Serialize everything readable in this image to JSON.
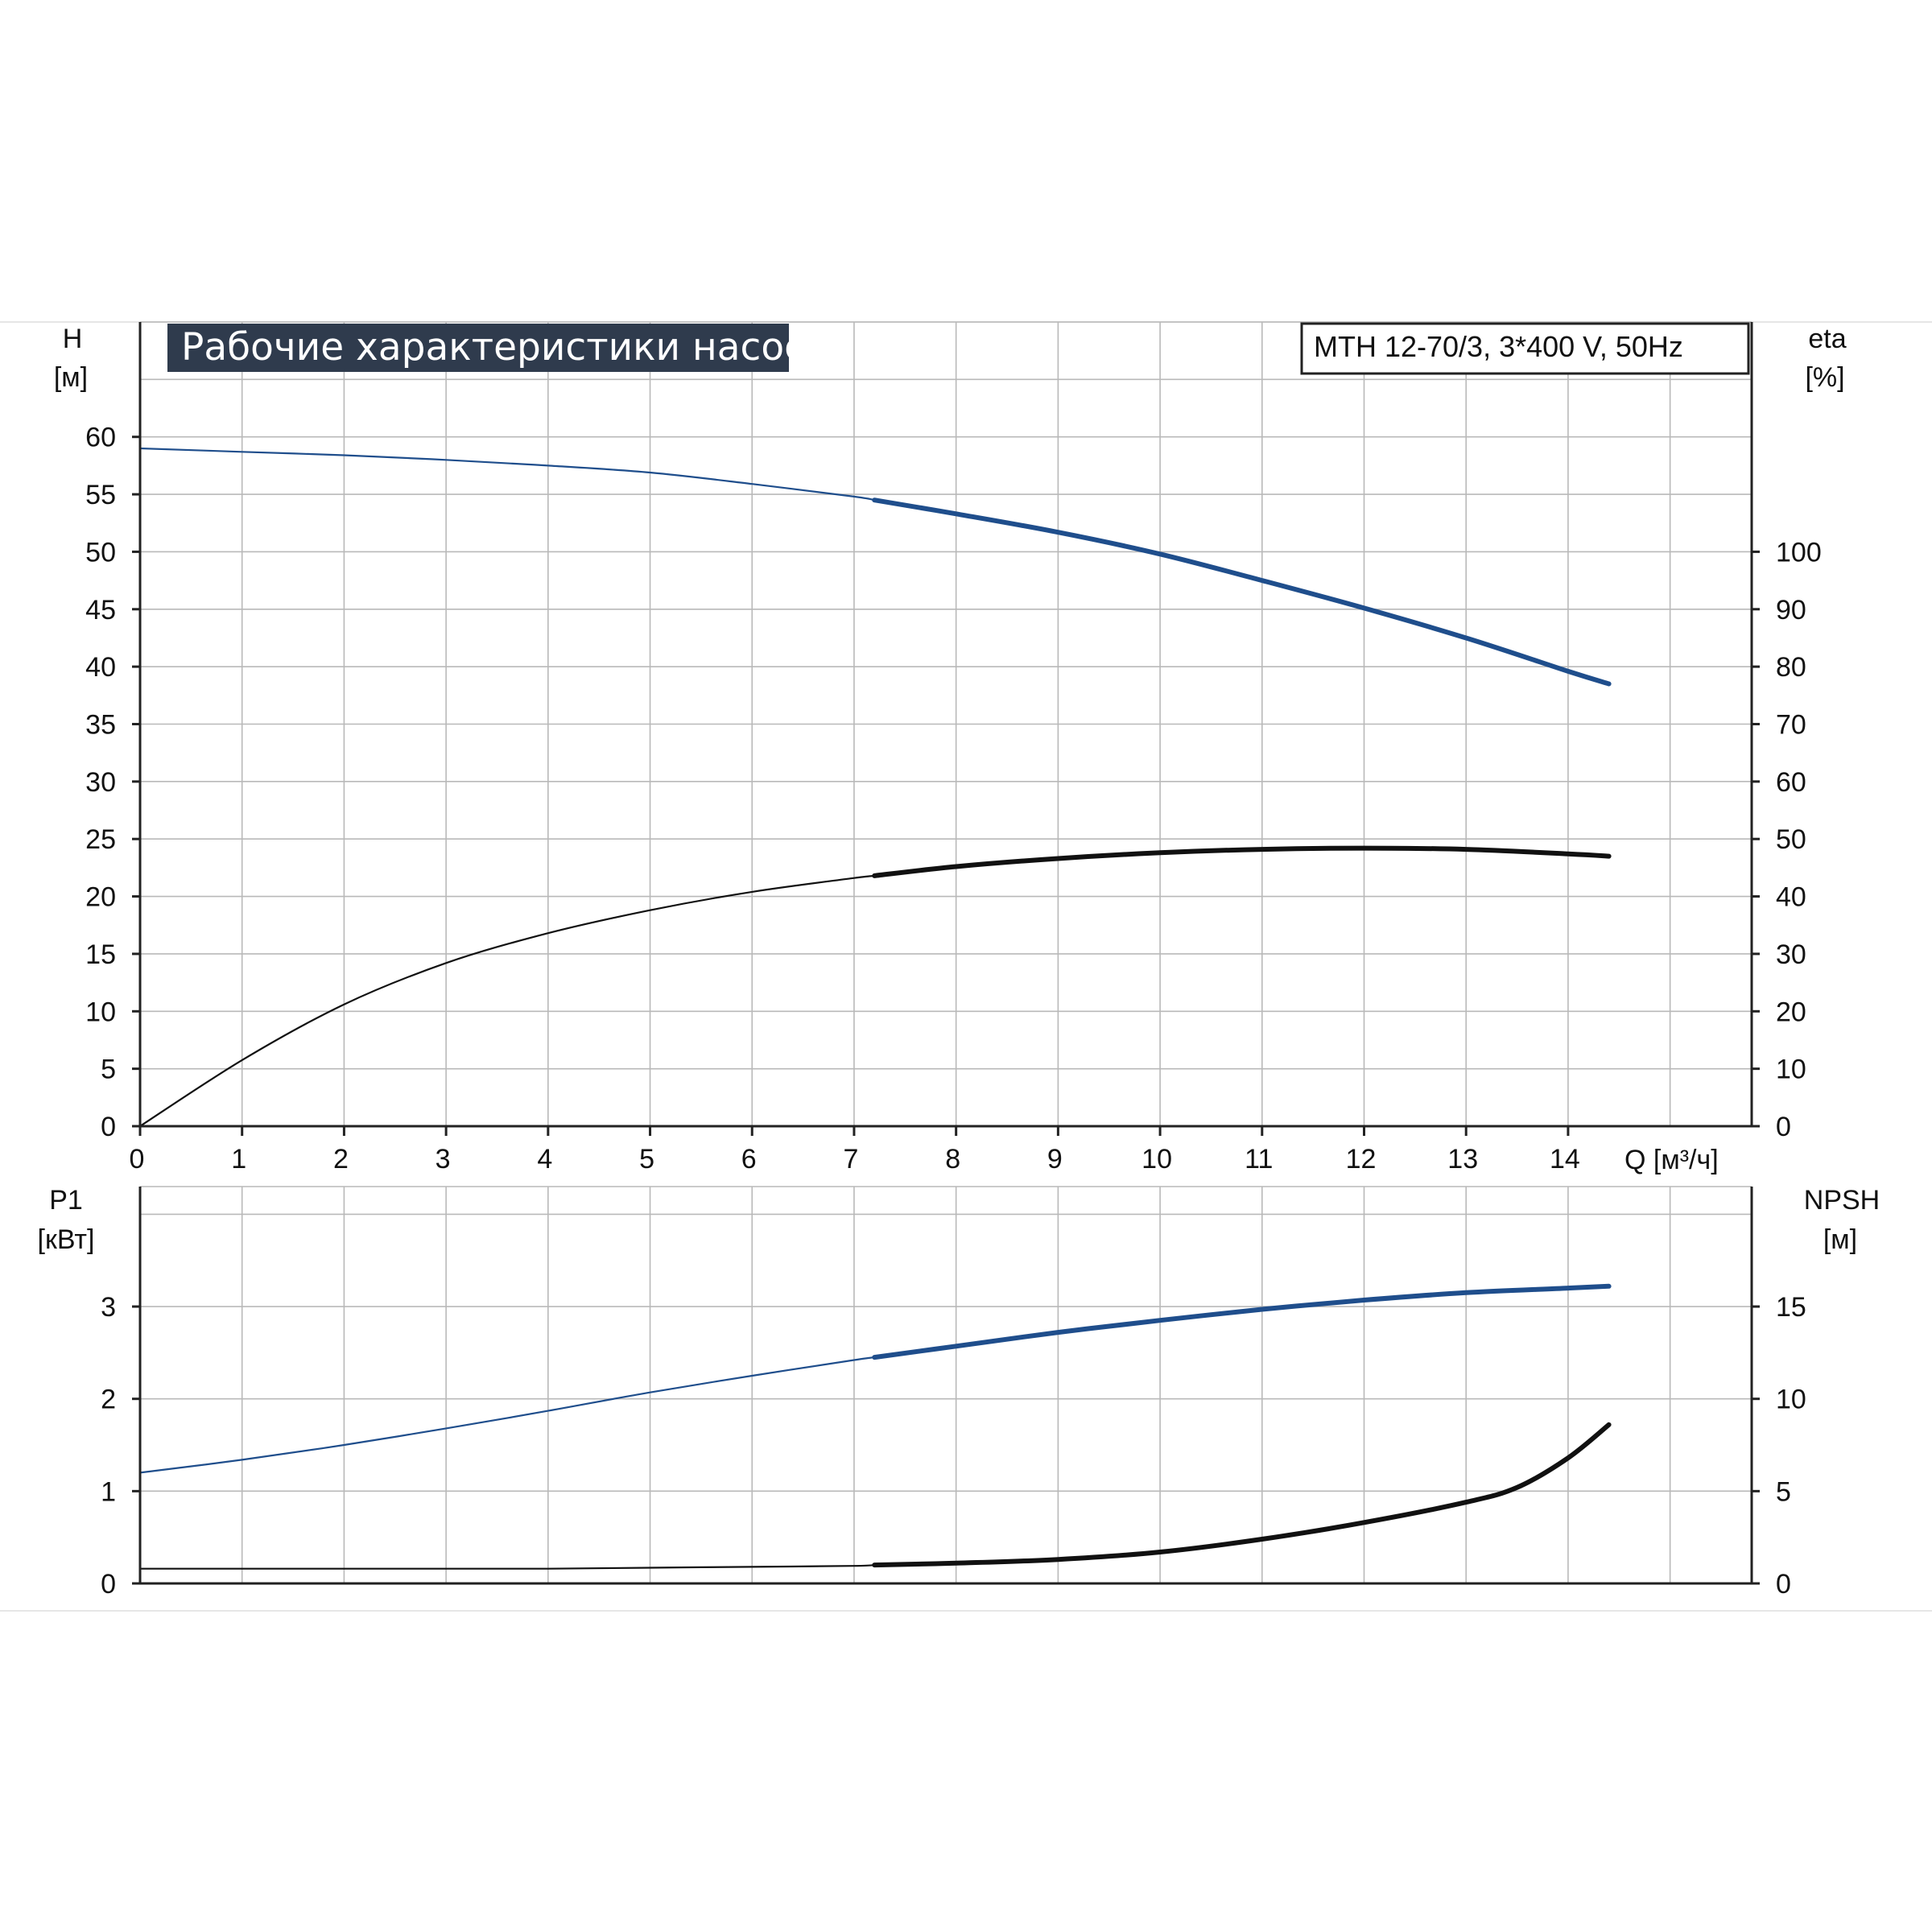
{
  "title": "Рабочие характеристики насоса",
  "model": "MTH 12-70/3, 3*400 V, 50Hz",
  "colors": {
    "title_bg": "#2f3b4d",
    "blue_curve": "#1f4e8c",
    "black_curve": "#111111"
  },
  "axes": {
    "x": {
      "label": "Q [м³/ч]",
      "range": [
        0,
        15.8
      ],
      "ticks": [
        0,
        1,
        2,
        3,
        4,
        5,
        6,
        7,
        8,
        9,
        10,
        11,
        12,
        13,
        14
      ]
    },
    "top_left": {
      "label_line1": "H",
      "label_line2": "[м]",
      "range": [
        0,
        70
      ],
      "ticks": [
        0,
        5,
        10,
        15,
        20,
        25,
        30,
        35,
        40,
        45,
        50,
        55,
        60
      ]
    },
    "top_right": {
      "label_line1": "eta",
      "label_line2": "[%]",
      "range": [
        0,
        140
      ],
      "ticks": [
        0,
        10,
        20,
        30,
        40,
        50,
        60,
        70,
        80,
        90,
        100
      ]
    },
    "bottom_left": {
      "label_line1": "P1",
      "label_line2": "[кВт]",
      "range": [
        0,
        4.3
      ],
      "ticks": [
        0,
        1,
        2,
        3
      ]
    },
    "bottom_right": {
      "label_line1": "NPSH",
      "label_line2": "[м]",
      "range": [
        0,
        21.5
      ],
      "ticks": [
        0,
        5,
        10,
        15
      ]
    }
  },
  "chart_data": [
    {
      "type": "line",
      "panel": "top",
      "grid": true,
      "series": [
        {
          "axis": "left",
          "color": "#1f4e8c",
          "bold_from_x": 7.2,
          "x": [
            0,
            1,
            2,
            3,
            4,
            5,
            6,
            7,
            7.2,
            8,
            9,
            10,
            11,
            12,
            13,
            14,
            14.4
          ],
          "y": [
            59,
            58.7,
            58.4,
            58.0,
            57.5,
            56.9,
            55.9,
            54.8,
            54.5,
            53.3,
            51.7,
            49.8,
            47.5,
            45.1,
            42.5,
            39.6,
            38.5
          ]
        },
        {
          "axis": "right",
          "color": "#111111",
          "bold_from_x": 7.2,
          "x": [
            0,
            1,
            2,
            3,
            4,
            5,
            6,
            7,
            7.2,
            8,
            9,
            10,
            11,
            12,
            13,
            14,
            14.4
          ],
          "y": [
            0,
            11.5,
            21.2,
            28.4,
            33.6,
            37.6,
            40.8,
            43.2,
            43.6,
            45.2,
            46.6,
            47.6,
            48.2,
            48.4,
            48.2,
            47.4,
            47.0
          ]
        }
      ]
    },
    {
      "type": "line",
      "panel": "bottom",
      "grid": true,
      "series": [
        {
          "axis": "left",
          "color": "#1f4e8c",
          "bold_from_x": 7.2,
          "x": [
            0,
            1,
            2,
            3,
            4,
            5,
            6,
            7,
            7.2,
            8,
            9,
            10,
            11,
            12,
            13,
            14,
            14.4
          ],
          "y": [
            1.2,
            1.34,
            1.5,
            1.68,
            1.87,
            2.07,
            2.25,
            2.42,
            2.45,
            2.57,
            2.72,
            2.85,
            2.97,
            3.07,
            3.15,
            3.2,
            3.22
          ]
        },
        {
          "axis": "right",
          "color": "#111111",
          "bold_from_x": 7.2,
          "x": [
            0,
            1,
            2,
            3,
            4,
            5,
            6,
            7,
            7.2,
            8,
            9,
            10,
            11,
            12,
            13,
            13.5,
            14,
            14.4
          ],
          "y": [
            0.8,
            0.8,
            0.8,
            0.8,
            0.8,
            0.85,
            0.9,
            0.95,
            1.0,
            1.1,
            1.3,
            1.7,
            2.4,
            3.3,
            4.4,
            5.2,
            6.8,
            8.6
          ]
        }
      ]
    }
  ]
}
